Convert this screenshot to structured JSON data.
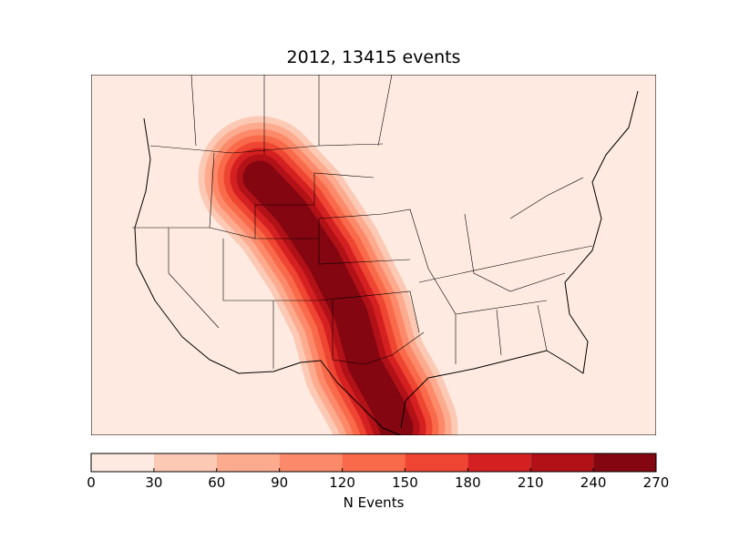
{
  "title": "2012, 13415 events",
  "colorbar": {
    "label": "N Events",
    "levels": [
      0,
      30,
      60,
      90,
      120,
      150,
      180,
      210,
      240,
      270
    ],
    "colors": [
      "#feeae0",
      "#fcc9b4",
      "#fcab8f",
      "#fc8a6a",
      "#f96a4a",
      "#ef4533",
      "#d42020",
      "#b11117",
      "#830610"
    ]
  }
}
